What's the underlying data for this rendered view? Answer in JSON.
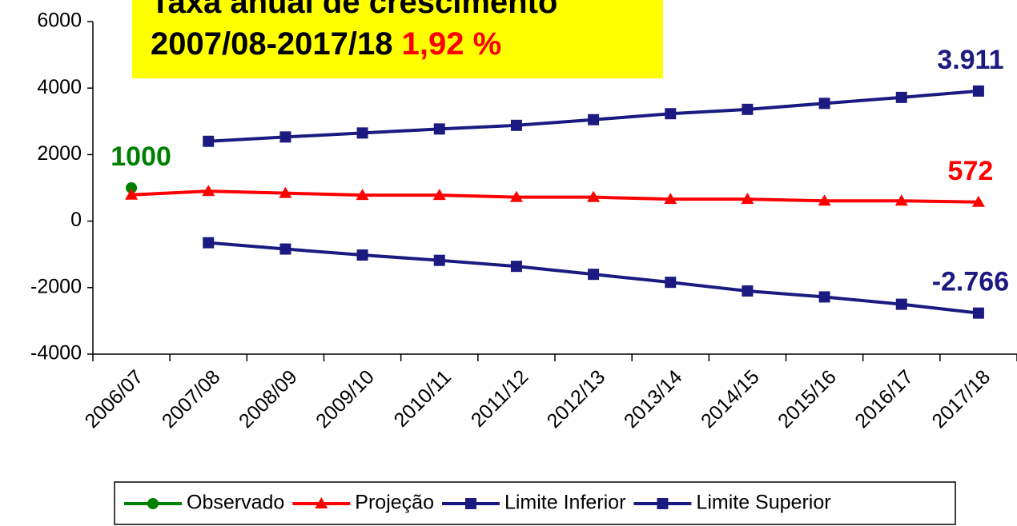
{
  "chart_data": {
    "type": "line",
    "title_line1": "Taxa anual de crescimento",
    "title_line2": "2007/08-2017/18",
    "title_rate": "1,92 %",
    "categories": [
      "2006/07",
      "2007/08",
      "2008/09",
      "2009/10",
      "2010/11",
      "2011/12",
      "2012/13",
      "2013/14",
      "2014/15",
      "2015/16",
      "2016/17",
      "2017/18"
    ],
    "series": [
      {
        "name": "Observado",
        "color": "#008000",
        "marker": "circle",
        "values": [
          1000,
          null,
          null,
          null,
          null,
          null,
          null,
          null,
          null,
          null,
          null,
          null
        ],
        "value_labels": [
          "1000",
          null,
          null,
          null,
          null,
          null,
          null,
          null,
          null,
          null,
          null,
          null
        ]
      },
      {
        "name": "Projeção",
        "color": "#ff0000",
        "marker": "triangle",
        "values": [
          790,
          900,
          840,
          780,
          780,
          720,
          720,
          660,
          660,
          610,
          610,
          572
        ],
        "value_labels": [
          null,
          null,
          null,
          null,
          null,
          null,
          null,
          null,
          null,
          null,
          null,
          "572"
        ]
      },
      {
        "name": "Limite Inferior",
        "color": "#1a1a80",
        "marker": "square",
        "values": [
          null,
          -650,
          -840,
          -1020,
          -1180,
          -1360,
          -1600,
          -1840,
          -2100,
          -2280,
          -2500,
          -2766
        ],
        "value_labels": [
          null,
          null,
          null,
          null,
          null,
          null,
          null,
          null,
          null,
          null,
          null,
          "-2.766"
        ]
      },
      {
        "name": "Limite Superior",
        "color": "#1a1a80",
        "marker": "square",
        "values": [
          null,
          2400,
          2530,
          2650,
          2770,
          2880,
          3050,
          3230,
          3360,
          3540,
          3720,
          3911
        ],
        "value_labels": [
          null,
          null,
          null,
          null,
          null,
          null,
          null,
          null,
          null,
          null,
          null,
          "3.911"
        ]
      }
    ],
    "ylim": [
      -4000,
      6000
    ],
    "yticks": [
      6000,
      4000,
      2000,
      0,
      -2000,
      -4000
    ],
    "grid": false,
    "legend": "bottom"
  }
}
